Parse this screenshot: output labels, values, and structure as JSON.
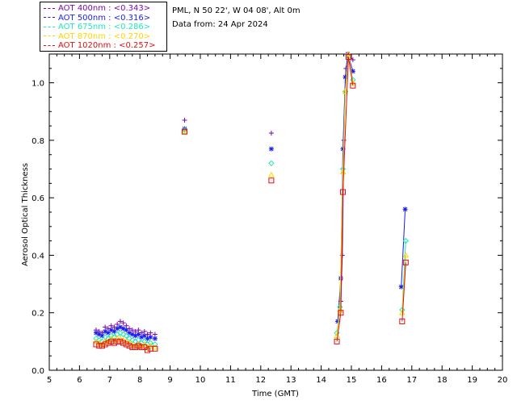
{
  "header": {
    "location": "PML, N 50 22', W 04 08', Alt 0m",
    "date": "Data from: 24 Apr 2024"
  },
  "legend": [
    {
      "label": "AOT  400nm : <0.343>",
      "color": "#7a0aa8"
    },
    {
      "label": "AOT  500nm : <0.316>",
      "color": "#1c1cf0"
    },
    {
      "label": "AOT  675nm : <0.286>",
      "color": "#1ee8b8"
    },
    {
      "label": "AOT  870nm : <0.270>",
      "color": "#ffd400"
    },
    {
      "label": "AOT 1020nm : <0.257>",
      "color": "#e01010"
    }
  ],
  "chart_data": {
    "type": "scatter",
    "title": "",
    "xlabel": "Time (GMT)",
    "ylabel": "Aerosol Optical Thickness",
    "xlim": [
      5,
      20
    ],
    "ylim": [
      0.0,
      1.1
    ],
    "xticks": [
      "5",
      "6",
      "7",
      "8",
      "9",
      "10",
      "11",
      "12",
      "13",
      "14",
      "15",
      "16",
      "17",
      "18",
      "19",
      "20"
    ],
    "yticks": [
      "0.0",
      "0.2",
      "0.4",
      "0.6",
      "0.8",
      "1.0"
    ],
    "series": [
      {
        "name": "AOT  400nm : <0.343>",
        "marker": "plus",
        "color": "#7a0aa8",
        "points": [
          [
            6.55,
            0.14
          ],
          [
            6.65,
            0.135
          ],
          [
            6.75,
            0.13
          ],
          [
            6.85,
            0.15
          ],
          [
            6.95,
            0.145
          ],
          [
            7.05,
            0.155
          ],
          [
            7.15,
            0.15
          ],
          [
            7.25,
            0.16
          ],
          [
            7.35,
            0.17
          ],
          [
            7.45,
            0.165
          ],
          [
            7.55,
            0.155
          ],
          [
            7.65,
            0.145
          ],
          [
            7.75,
            0.14
          ],
          [
            7.85,
            0.135
          ],
          [
            7.95,
            0.14
          ],
          [
            8.05,
            0.13
          ],
          [
            8.15,
            0.135
          ],
          [
            8.25,
            0.125
          ],
          [
            8.35,
            0.13
          ],
          [
            8.5,
            0.125
          ],
          [
            9.48,
            0.87
          ],
          [
            12.35,
            0.825
          ],
          [
            14.55,
            0.17
          ],
          [
            14.65,
            0.24
          ],
          [
            14.7,
            0.4
          ],
          [
            14.75,
            0.8
          ],
          [
            14.82,
            1.05
          ],
          [
            14.9,
            1.1
          ],
          [
            15.05,
            1.08
          ]
        ],
        "connect_from": 22
      },
      {
        "name": "AOT  500nm : <0.316>",
        "marker": "asterisk",
        "color": "#1c1cf0",
        "points": [
          [
            6.55,
            0.13
          ],
          [
            6.65,
            0.125
          ],
          [
            6.75,
            0.12
          ],
          [
            6.85,
            0.135
          ],
          [
            6.95,
            0.13
          ],
          [
            7.05,
            0.14
          ],
          [
            7.15,
            0.135
          ],
          [
            7.25,
            0.145
          ],
          [
            7.35,
            0.15
          ],
          [
            7.45,
            0.145
          ],
          [
            7.55,
            0.14
          ],
          [
            7.65,
            0.13
          ],
          [
            7.75,
            0.125
          ],
          [
            7.85,
            0.12
          ],
          [
            7.95,
            0.125
          ],
          [
            8.05,
            0.115
          ],
          [
            8.15,
            0.12
          ],
          [
            8.25,
            0.11
          ],
          [
            8.35,
            0.115
          ],
          [
            8.5,
            0.11
          ],
          [
            9.48,
            0.84
          ],
          [
            12.35,
            0.77
          ],
          [
            14.55,
            0.17
          ],
          [
            14.65,
            0.32
          ],
          [
            14.72,
            0.77
          ],
          [
            14.8,
            1.02
          ],
          [
            14.88,
            1.1
          ],
          [
            15.05,
            1.04
          ],
          [
            16.65,
            0.29
          ],
          [
            16.78,
            0.56
          ]
        ],
        "connect_from": 22
      },
      {
        "name": "AOT  675nm : <0.286>",
        "marker": "diamond",
        "color": "#1ee8b8",
        "points": [
          [
            6.55,
            0.11
          ],
          [
            6.65,
            0.105
          ],
          [
            6.75,
            0.1
          ],
          [
            6.85,
            0.115
          ],
          [
            6.95,
            0.11
          ],
          [
            7.05,
            0.12
          ],
          [
            7.15,
            0.115
          ],
          [
            7.25,
            0.125
          ],
          [
            7.35,
            0.13
          ],
          [
            7.45,
            0.125
          ],
          [
            7.55,
            0.12
          ],
          [
            7.65,
            0.11
          ],
          [
            7.75,
            0.105
          ],
          [
            7.85,
            0.1
          ],
          [
            7.95,
            0.105
          ],
          [
            8.05,
            0.095
          ],
          [
            8.15,
            0.1
          ],
          [
            8.25,
            0.09
          ],
          [
            8.35,
            0.095
          ],
          [
            8.5,
            0.09
          ],
          [
            9.48,
            0.835
          ],
          [
            12.35,
            0.72
          ],
          [
            14.52,
            0.13
          ],
          [
            14.62,
            0.22
          ],
          [
            14.72,
            0.7
          ],
          [
            14.8,
            0.97
          ],
          [
            14.9,
            1.09
          ],
          [
            15.05,
            1.01
          ],
          [
            16.68,
            0.21
          ],
          [
            16.8,
            0.45
          ]
        ],
        "connect_from": 22
      },
      {
        "name": "AOT  870nm : <0.270>",
        "marker": "triangle",
        "color": "#ffd400",
        "points": [
          [
            6.55,
            0.1
          ],
          [
            6.65,
            0.095
          ],
          [
            6.75,
            0.09
          ],
          [
            6.85,
            0.1
          ],
          [
            6.95,
            0.1
          ],
          [
            7.05,
            0.11
          ],
          [
            7.15,
            0.105
          ],
          [
            7.25,
            0.11
          ],
          [
            7.35,
            0.11
          ],
          [
            7.45,
            0.105
          ],
          [
            7.55,
            0.1
          ],
          [
            7.65,
            0.095
          ],
          [
            7.75,
            0.09
          ],
          [
            7.85,
            0.085
          ],
          [
            7.95,
            0.09
          ],
          [
            8.05,
            0.085
          ],
          [
            8.15,
            0.09
          ],
          [
            8.25,
            0.08
          ],
          [
            8.35,
            0.085
          ],
          [
            8.5,
            0.08
          ],
          [
            9.48,
            0.83
          ],
          [
            12.35,
            0.68
          ],
          [
            14.52,
            0.12
          ],
          [
            14.62,
            0.21
          ],
          [
            14.72,
            0.69
          ],
          [
            14.8,
            0.97
          ],
          [
            14.9,
            1.1
          ],
          [
            15.05,
            1.0
          ],
          [
            16.68,
            0.2
          ],
          [
            16.8,
            0.4
          ]
        ],
        "connect_from": 22
      },
      {
        "name": "AOT 1020nm : <0.257>",
        "marker": "square",
        "color": "#e01010",
        "points": [
          [
            6.55,
            0.09
          ],
          [
            6.65,
            0.085
          ],
          [
            6.75,
            0.085
          ],
          [
            6.85,
            0.09
          ],
          [
            6.95,
            0.095
          ],
          [
            7.05,
            0.1
          ],
          [
            7.15,
            0.095
          ],
          [
            7.25,
            0.1
          ],
          [
            7.35,
            0.1
          ],
          [
            7.45,
            0.095
          ],
          [
            7.55,
            0.09
          ],
          [
            7.65,
            0.085
          ],
          [
            7.75,
            0.08
          ],
          [
            7.85,
            0.08
          ],
          [
            7.95,
            0.085
          ],
          [
            8.05,
            0.08
          ],
          [
            8.15,
            0.08
          ],
          [
            8.25,
            0.07
          ],
          [
            8.35,
            0.075
          ],
          [
            8.5,
            0.075
          ],
          [
            9.48,
            0.83
          ],
          [
            12.35,
            0.66
          ],
          [
            14.52,
            0.1
          ],
          [
            14.65,
            0.2
          ],
          [
            14.72,
            0.62
          ],
          [
            14.9,
            1.09
          ],
          [
            15.05,
            0.99
          ],
          [
            16.68,
            0.17
          ],
          [
            16.8,
            0.375
          ]
        ],
        "connect_from": 22
      }
    ]
  }
}
